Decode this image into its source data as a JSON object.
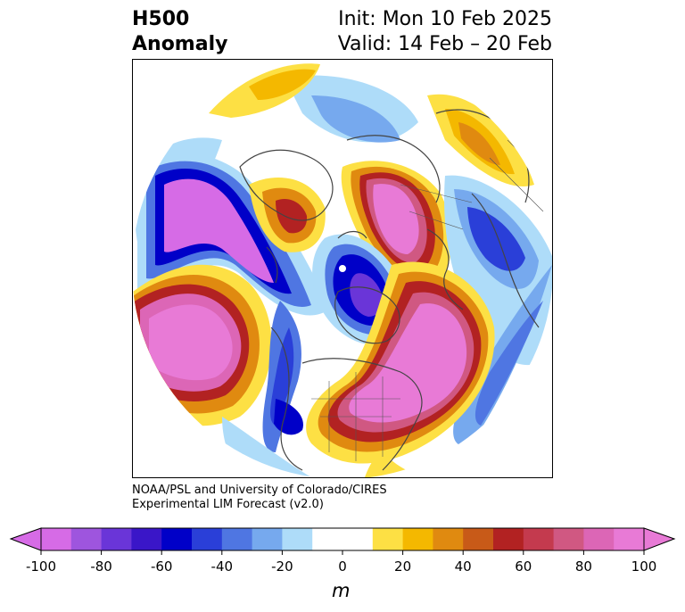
{
  "header": {
    "title_line1": "H500",
    "title_line2": "Anomaly",
    "init": "Init: Mon 10 Feb 2025",
    "valid": "Valid: 14 Feb – 20 Feb"
  },
  "credit": {
    "line1": "NOAA/PSL and University of Colorado/CIRES",
    "line2": "Experimental LIM Forecast (v2.0)"
  },
  "colorbar": {
    "unit": "m",
    "tick_labels": [
      "-100",
      "-80",
      "-60",
      "-40",
      "-20",
      "0",
      "20",
      "40",
      "60",
      "80",
      "100"
    ],
    "colors": [
      "#d66be6",
      "#9e55de",
      "#6a35d8",
      "#3a16c8",
      "#0000c8",
      "#2a3fd8",
      "#4f76e2",
      "#76a9ee",
      "#aedcf9",
      "#ffffff",
      "#ffffff",
      "#fde044",
      "#f4b800",
      "#e08a10",
      "#c85a18",
      "#b22222",
      "#c43a4e",
      "#d05882",
      "#dc66b6",
      "#e87ad6"
    ]
  }
}
